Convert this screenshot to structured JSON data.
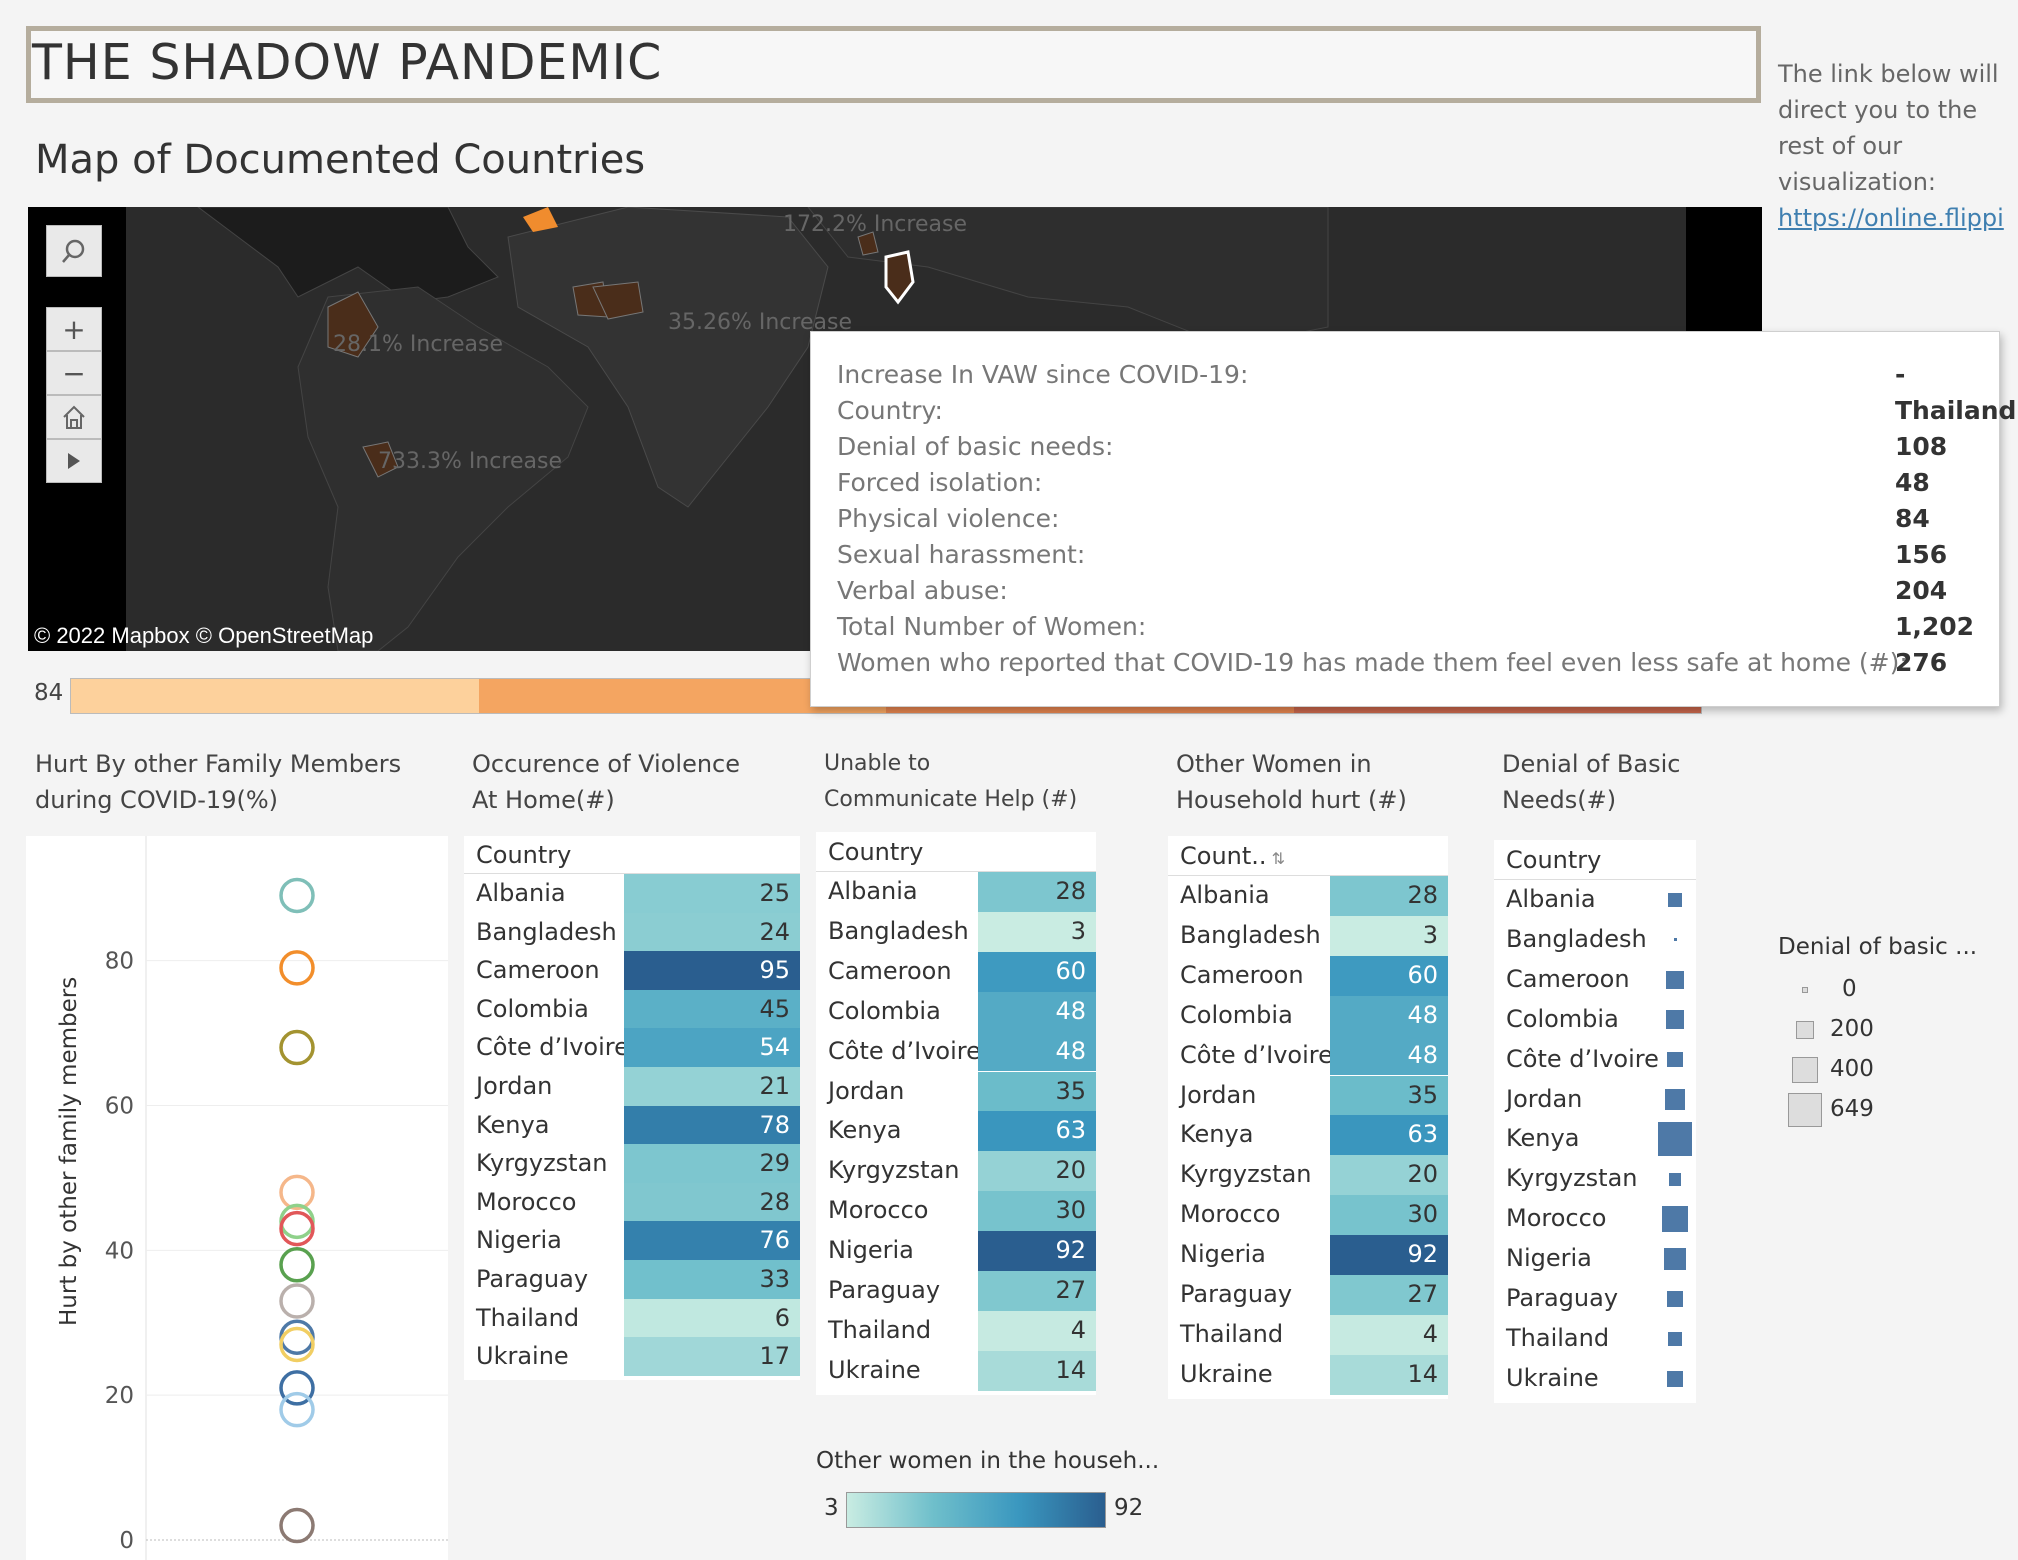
{
  "title": "THE SHADOW PANDEMIC",
  "map_heading": "Map of Documented Countries",
  "info_note": {
    "text": "The link below will direct you to the rest of our visualization:",
    "link": "https://online.flippi"
  },
  "map": {
    "labels": [
      "172.2% Increase",
      "28.1% Increase",
      "35.26% Increase",
      "733.3% Increase"
    ],
    "attribution": "© 2022 Mapbox  © OpenStreetMap",
    "highlight_color": "#f08c2e",
    "country_color": "#4a2d1a"
  },
  "range_bar": {
    "label": "84",
    "colors": [
      "#fdd19c",
      "#f4a561",
      "#e2834e",
      "#c6654a"
    ]
  },
  "tooltip": {
    "rows": [
      {
        "label": "Increase In VAW since COVID-19:",
        "value": "-"
      },
      {
        "label": "Country:",
        "value": "Thailand"
      },
      {
        "label": "Denial of basic needs:",
        "value": "108"
      },
      {
        "label": "Forced isolation:",
        "value": "48"
      },
      {
        "label": "Physical violence:",
        "value": "84"
      },
      {
        "label": "Sexual harassment:",
        "value": "156"
      },
      {
        "label": "Verbal abuse:",
        "value": "204"
      },
      {
        "label": "Total Number of Women:",
        "value": "1,202"
      },
      {
        "label": "Women who reported that COVID-19  has made them feel even less safe at home (#):",
        "value": "276"
      }
    ]
  },
  "sections": {
    "hurt": "Hurt By other Family Members during COVID-19(%)",
    "occurrence": "Occurence of Violence At Home(#)",
    "communicate": "Unable to Communicate Help (#)",
    "household": "Other Women in Household hurt (#)",
    "denial": "Denial of Basic Needs(#)"
  },
  "chart_data": {
    "type": "scatter",
    "ylabel": "Hurt by other family members",
    "ylim": [
      0,
      95
    ],
    "yticks": [
      "0",
      "20",
      "40",
      "60",
      "80"
    ],
    "points": [
      {
        "y": 89,
        "color": "#7fbfb8"
      },
      {
        "y": 79,
        "color": "#f28e2b"
      },
      {
        "y": 68,
        "color": "#a39330"
      },
      {
        "y": 48,
        "color": "#f5b78a"
      },
      {
        "y": 44,
        "color": "#8fd18a"
      },
      {
        "y": 43,
        "color": "#e15759"
      },
      {
        "y": 38,
        "color": "#59a14f"
      },
      {
        "y": 33,
        "color": "#bab0ac"
      },
      {
        "y": 28,
        "color": "#4e79a7"
      },
      {
        "y": 27,
        "color": "#f1ce63"
      },
      {
        "y": 21,
        "color": "#3e6fa3"
      },
      {
        "y": 18,
        "color": "#a0cbe8"
      },
      {
        "y": 2,
        "color": "#8c7a73"
      }
    ]
  },
  "tables": {
    "header": "Country",
    "header_sorted": "Count..",
    "countries": [
      "Albania",
      "Bangladesh",
      "Cameroon",
      "Colombia",
      "Côte d’Ivoire",
      "Jordan",
      "Kenya",
      "Kyrgyzstan",
      "Morocco",
      "Nigeria",
      "Paraguay",
      "Thailand",
      "Ukraine"
    ],
    "occurrence": [
      25,
      24,
      95,
      45,
      54,
      21,
      78,
      29,
      28,
      76,
      33,
      6,
      17
    ],
    "communicate": [
      28,
      3,
      60,
      48,
      48,
      35,
      63,
      20,
      30,
      92,
      27,
      4,
      14
    ],
    "household": [
      28,
      3,
      60,
      48,
      48,
      35,
      63,
      20,
      30,
      92,
      27,
      4,
      14
    ],
    "denial": [
      108,
      5,
      190,
      195,
      140,
      230,
      649,
      90,
      400,
      255,
      135,
      108,
      145
    ]
  },
  "heat_legend": {
    "title": "Other women  in the househ...",
    "min": "3",
    "max": "92"
  },
  "size_legend": {
    "title": "Denial of basic ...",
    "items": [
      "0",
      "200",
      "400",
      "649"
    ]
  }
}
